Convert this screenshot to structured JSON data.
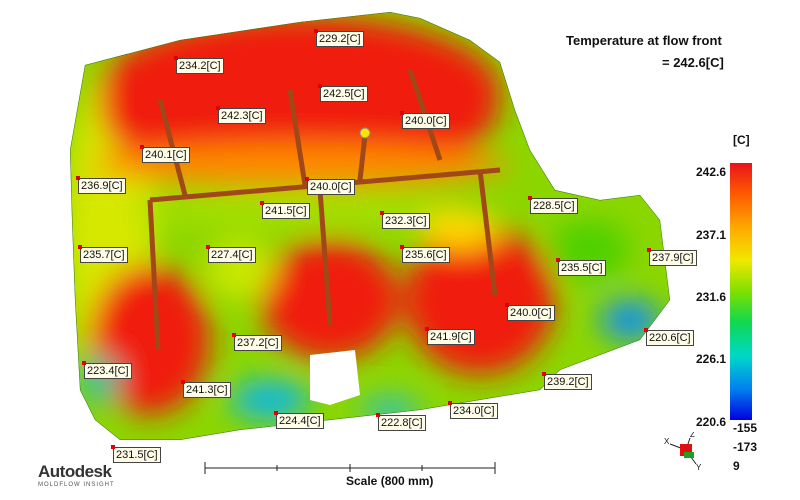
{
  "title": "Temperature at flow front",
  "value": "= 242.6[C]",
  "legend": {
    "unit": "[C]",
    "ticks": [
      "242.6",
      "237.1",
      "231.6",
      "226.1",
      "220.6"
    ],
    "max_color": "#e8141a",
    "min_color": "#0000e0"
  },
  "rotation": [
    "-155",
    "-173",
    "9"
  ],
  "labels": [
    "229.2[C]",
    "234.2[C]",
    "242.5[C]",
    "242.3[C]",
    "240.0[C]",
    "240.1[C]",
    "236.9[C]",
    "240.0[C]",
    "241.5[C]",
    "232.3[C]",
    "228.5[C]",
    "235.7[C]",
    "227.4[C]",
    "235.6[C]",
    "235.5[C]",
    "237.9[C]",
    "240.0[C]",
    "241.9[C]",
    "237.2[C]",
    "220.6[C]",
    "223.4[C]",
    "241.3[C]",
    "239.2[C]",
    "224.4[C]",
    "222.8[C]",
    "234.0[C]",
    "231.5[C]"
  ],
  "axis_letters": [
    "X",
    "Y",
    "Z"
  ],
  "brand": {
    "name": "Autodesk",
    "sub": "MOLDFLOW INSIGHT"
  },
  "scale": "Scale (800 mm)"
}
